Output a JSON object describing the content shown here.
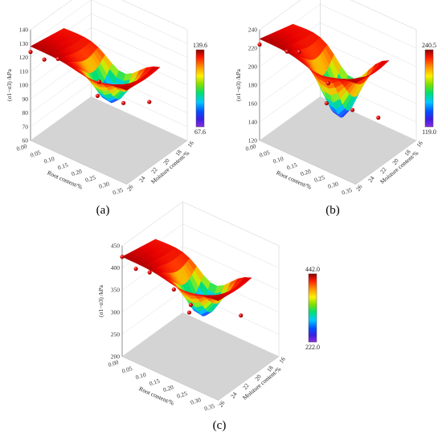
{
  "figure": {
    "panels": [
      "(a)",
      "(b)",
      "(c)"
    ]
  },
  "chart_data": [
    {
      "type": "surface3d",
      "label": "(a)",
      "zlabel": "(σ1−σ3) /kPa",
      "xlabel": "Root content/%",
      "ylabel": "Moisture content/%",
      "x_ticks": [
        "0.00",
        "0.05",
        "0.10",
        "0.15",
        "0.20",
        "0.25",
        "0.30",
        "0.35"
      ],
      "y_ticks": [
        "16",
        "18",
        "20",
        "22",
        "24",
        "26"
      ],
      "z_ticks": [
        "60",
        "70",
        "80",
        "90",
        "100",
        "110",
        "120",
        "130",
        "140"
      ],
      "zlim": [
        60,
        140
      ],
      "colorbar": {
        "min": "67.6",
        "max": "139.6"
      },
      "points": [
        {
          "x": 0.0,
          "y": 26,
          "z": 124
        },
        {
          "x": 0.05,
          "y": 26,
          "z": 123
        },
        {
          "x": 0.1,
          "y": 26,
          "z": 128
        },
        {
          "x": 0.25,
          "y": 26,
          "z": 125
        },
        {
          "x": 0.2,
          "y": 24,
          "z": 104
        },
        {
          "x": 0.25,
          "y": 22,
          "z": 97
        },
        {
          "x": 0.3,
          "y": 20,
          "z": 96
        }
      ]
    },
    {
      "type": "surface3d",
      "label": "(b)",
      "zlabel": "(σ1−σ3) /kPa",
      "xlabel": "Root content/%",
      "ylabel": "Moisture content/%",
      "x_ticks": [
        "0.00",
        "0.05",
        "0.10",
        "0.15",
        "0.20",
        "0.25",
        "0.30",
        "0.35"
      ],
      "y_ticks": [
        "16",
        "18",
        "20",
        "22",
        "24",
        "26"
      ],
      "z_ticks": [
        "120",
        "140",
        "160",
        "180",
        "200",
        "220",
        "240"
      ],
      "zlim": [
        120,
        240
      ],
      "colorbar": {
        "min": "119.0",
        "max": "240.5"
      },
      "points": [
        {
          "x": 0.0,
          "y": 26,
          "z": 224
        },
        {
          "x": 0.1,
          "y": 26,
          "z": 230
        },
        {
          "x": 0.1,
          "y": 24,
          "z": 220
        },
        {
          "x": 0.25,
          "y": 26,
          "z": 216
        },
        {
          "x": 0.2,
          "y": 24,
          "z": 178
        },
        {
          "x": 0.25,
          "y": 22,
          "z": 168
        },
        {
          "x": 0.3,
          "y": 20,
          "z": 157
        }
      ]
    },
    {
      "type": "surface3d",
      "label": "(c)",
      "zlabel": "(σ1−σ3) /kPa",
      "xlabel": "Root content/%",
      "ylabel": "Moisture content/%",
      "x_ticks": [
        "0.00",
        "0.05",
        "0.10",
        "0.15",
        "0.20",
        "0.25",
        "0.30",
        "0.35"
      ],
      "y_ticks": [
        "16",
        "18",
        "20",
        "22",
        "24",
        "26"
      ],
      "z_ticks": [
        "200",
        "250",
        "300",
        "350",
        "400",
        "450"
      ],
      "zlim": [
        200,
        450
      ],
      "colorbar": {
        "min": "222.0",
        "max": "442.0"
      },
      "points": [
        {
          "x": 0.0,
          "y": 26,
          "z": 425
        },
        {
          "x": 0.05,
          "y": 26,
          "z": 412
        },
        {
          "x": 0.1,
          "y": 26,
          "z": 418
        },
        {
          "x": 0.25,
          "y": 26,
          "z": 387
        },
        {
          "x": 0.1,
          "y": 22,
          "z": 340
        },
        {
          "x": 0.2,
          "y": 24,
          "z": 336
        },
        {
          "x": 0.3,
          "y": 20,
          "z": 318
        }
      ]
    }
  ]
}
